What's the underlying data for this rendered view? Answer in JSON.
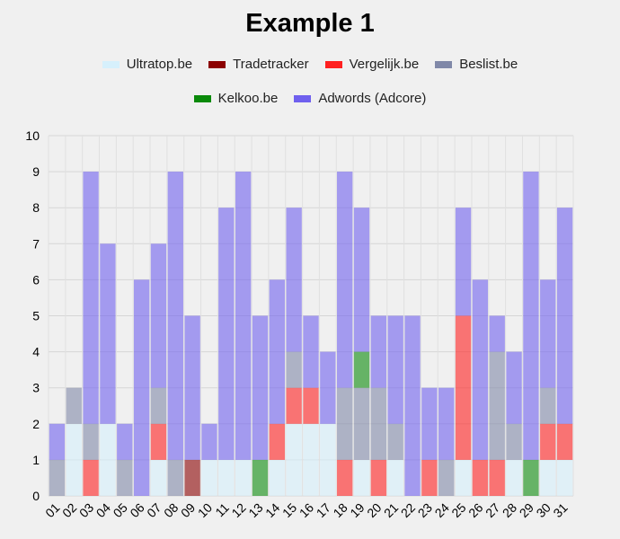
{
  "chart_data": {
    "type": "bar",
    "stacked": true,
    "title": "Example 1",
    "categories": [
      "01",
      "02",
      "03",
      "04",
      "05",
      "06",
      "07",
      "08",
      "09",
      "10",
      "11",
      "12",
      "13",
      "14",
      "15",
      "16",
      "17",
      "18",
      "19",
      "20",
      "21",
      "22",
      "23",
      "24",
      "25",
      "26",
      "27",
      "28",
      "29",
      "30",
      "31"
    ],
    "ylim": [
      0,
      10
    ],
    "yticks": [
      "0",
      "1",
      "2",
      "3",
      "4",
      "5",
      "6",
      "7",
      "8",
      "9",
      "10"
    ],
    "grid": true,
    "legend_position": "top",
    "series": [
      {
        "name": "Ultratop.be",
        "color": "#d6f0fc",
        "values": [
          0,
          2,
          0,
          2,
          0,
          0,
          1,
          0,
          0,
          1,
          1,
          1,
          0,
          1,
          2,
          2,
          2,
          0,
          1,
          0,
          1,
          0,
          0,
          0,
          1,
          0,
          0,
          1,
          0,
          1,
          1
        ]
      },
      {
        "name": "Tradetracker",
        "color": "#8b0000",
        "values": [
          0,
          0,
          0,
          0,
          0,
          0,
          0,
          0,
          1,
          0,
          0,
          0,
          0,
          0,
          0,
          0,
          0,
          0,
          0,
          0,
          0,
          0,
          0,
          0,
          0,
          0,
          0,
          0,
          0,
          0,
          0
        ]
      },
      {
        "name": "Vergelijk.be",
        "color": "#ff2020",
        "values": [
          0,
          0,
          1,
          0,
          0,
          0,
          1,
          0,
          0,
          0,
          0,
          0,
          0,
          1,
          1,
          1,
          0,
          1,
          0,
          1,
          0,
          0,
          1,
          0,
          4,
          1,
          1,
          0,
          0,
          1,
          1
        ]
      },
      {
        "name": "Beslist.be",
        "color": "#8088a8",
        "values": [
          1,
          1,
          1,
          0,
          1,
          0,
          1,
          1,
          0,
          0,
          0,
          0,
          0,
          0,
          1,
          0,
          0,
          2,
          2,
          2,
          1,
          0,
          0,
          1,
          0,
          0,
          3,
          1,
          0,
          1,
          0
        ]
      },
      {
        "name": "Kelkoo.be",
        "color": "#0a8a0a",
        "values": [
          0,
          0,
          0,
          0,
          0,
          0,
          0,
          0,
          0,
          0,
          0,
          0,
          1,
          0,
          0,
          0,
          0,
          0,
          1,
          0,
          0,
          0,
          0,
          0,
          0,
          0,
          0,
          0,
          1,
          0,
          0
        ]
      },
      {
        "name": "Adwords (Adcore)",
        "color": "#6f60ee",
        "values": [
          1,
          0,
          7,
          5,
          1,
          6,
          4,
          8,
          4,
          1,
          7,
          8,
          4,
          4,
          4,
          2,
          2,
          6,
          4,
          2,
          3,
          5,
          2,
          2,
          3,
          5,
          1,
          2,
          8,
          3,
          6
        ]
      }
    ]
  }
}
